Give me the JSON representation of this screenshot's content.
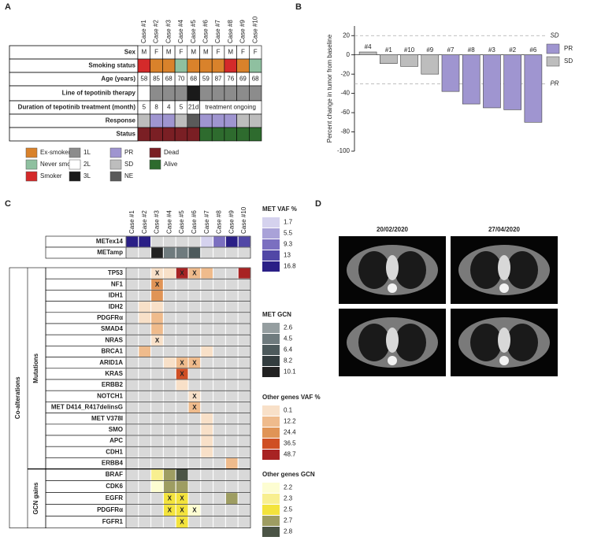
{
  "panel_a": {
    "label": "A",
    "cases": [
      "Case #1",
      "Case #2",
      "Case #3",
      "Case #4",
      "Case #5",
      "Case #6",
      "Case #7",
      "Case #8",
      "Case #9",
      "Case #10"
    ],
    "rows": [
      {
        "label": "Sex",
        "cells": [
          "M",
          "F",
          "M",
          "F",
          "M",
          "M",
          "F",
          "M",
          "F",
          "F"
        ]
      },
      {
        "label": "Smoking status",
        "cells": [
          "Smoker",
          "Ex-smoker",
          "Ex-smoker",
          "Never smoked",
          "Ex-smoker",
          "Ex-smoker",
          "Ex-smoker",
          "Smoker",
          "Ex-smoker",
          "Never smoked"
        ]
      },
      {
        "label": "Age (years)",
        "cells": [
          58,
          85,
          68,
          70,
          68,
          59,
          87,
          76,
          69,
          68
        ]
      },
      {
        "label": "Line of tepotinib therapy",
        "cells": [
          "2L",
          "1L",
          "1L",
          "1L",
          "3L",
          "1L",
          "1L",
          "1L",
          "1L",
          "1L"
        ]
      },
      {
        "label": "Duration of tepotinib treatment (month)",
        "cells": [
          5,
          8,
          4,
          5,
          "21d",
          "treatment ongoing",
          null,
          null,
          null,
          null
        ]
      },
      {
        "label": "Response",
        "cells": [
          "SD",
          "PR",
          "PR",
          "SD",
          "NE",
          "PR",
          "PR",
          "PR",
          "SD",
          "SD"
        ]
      },
      {
        "label": "Status",
        "cells": [
          "Dead",
          "Dead",
          "Dead",
          "Dead",
          "Dead",
          "Alive",
          "Alive",
          "Alive",
          "Alive",
          "Alive"
        ]
      }
    ],
    "legend": [
      {
        "name": "Ex-smoker",
        "color": "#d9822b"
      },
      {
        "name": "Never smoked",
        "color": "#8fc0a0"
      },
      {
        "name": "Smoker",
        "color": "#d42a2a"
      },
      {
        "name": "1L",
        "color": "#8c8c8c"
      },
      {
        "name": "2L",
        "color": "#ffffff"
      },
      {
        "name": "3L",
        "color": "#1a1a1a"
      },
      {
        "name": "PR",
        "color": "#9f95d0"
      },
      {
        "name": "SD",
        "color": "#bdbdbd"
      },
      {
        "name": "NE",
        "color": "#5a5a5a"
      },
      {
        "name": "Dead",
        "color": "#7a1f24"
      },
      {
        "name": "Alive",
        "color": "#2e6b2e"
      }
    ]
  },
  "chart_data": {
    "type": "bar",
    "panel_label": "B",
    "ylabel": "Percent change in tumor from baseline",
    "categories": [
      "#4",
      "#1",
      "#10",
      "#9",
      "#7",
      "#8",
      "#3",
      "#2",
      "#6"
    ],
    "series": [
      {
        "name": "PR",
        "color": "#9f95d0",
        "values": [
          null,
          null,
          null,
          null,
          -38,
          -51,
          -55,
          -57,
          -70
        ]
      },
      {
        "name": "SD",
        "color": "#bdbdbd",
        "values": [
          3,
          -9,
          -12,
          -20,
          null,
          null,
          null,
          null,
          null
        ]
      }
    ],
    "ylim": [
      -100,
      30
    ],
    "yticks": [
      20,
      0,
      -20,
      -40,
      -60,
      -80,
      -100
    ],
    "reference_lines": [
      {
        "value": 20,
        "label": "SD"
      },
      {
        "value": -30,
        "label": "PR"
      }
    ],
    "legend": "right"
  },
  "panel_c": {
    "label": "C",
    "cases": [
      "Case #1",
      "Case #2",
      "Case #3",
      "Case #4",
      "Case #5",
      "Case #6",
      "Case #7",
      "Case #8",
      "Case #9",
      "Case #10"
    ],
    "group_label": "Co-alterations",
    "mutations_label": "Mutations",
    "gcn_label": "GCN gains",
    "scales": [
      {
        "title": "MET VAF %",
        "levels": [
          1.7,
          5.5,
          9.3,
          13,
          16.8
        ],
        "colors": [
          "#d5d2ee",
          "#a9a2d8",
          "#7b6fc0",
          "#5147a6",
          "#2a1f86"
        ]
      },
      {
        "title": "MET GCN",
        "levels": [
          2.6,
          4.5,
          6.4,
          8.2,
          10.1
        ],
        "colors": [
          "#959ea0",
          "#6f7b7e",
          "#4d5a5c",
          "#333d3f",
          "#222222"
        ]
      },
      {
        "title": "Other genes VAF %",
        "levels": [
          0.1,
          12.2,
          24.4,
          36.5,
          48.7
        ],
        "colors": [
          "#f8e0c8",
          "#efbb8c",
          "#e09456",
          "#cf4f24",
          "#a82323"
        ]
      },
      {
        "title": "Other genes GCN",
        "levels": [
          2.2,
          2.3,
          2.5,
          2.7,
          2.8
        ],
        "colors": [
          "#fdfdd2",
          "#f8ef90",
          "#f3e33c",
          "#9e9d62",
          "#4b5445"
        ]
      }
    ],
    "met_vaf_rows": [
      {
        "label": "METex14",
        "values": [
          16.8,
          16.8,
          null,
          null,
          null,
          null,
          1.7,
          9.3,
          16.8,
          13
        ]
      }
    ],
    "met_gcn_rows": [
      {
        "label": "METamp",
        "values": [
          null,
          null,
          10.1,
          4.5,
          4.5,
          6.4,
          null,
          null,
          null,
          null
        ]
      }
    ],
    "mutation_rows": [
      {
        "label": "TP53",
        "values": [
          null,
          null,
          0.1,
          0.1,
          48.7,
          12.2,
          12.2,
          null,
          null,
          48.7
        ],
        "marks": [
          null,
          null,
          "X",
          null,
          "X",
          "X",
          null,
          null,
          null,
          null
        ]
      },
      {
        "label": "NF1",
        "values": [
          null,
          null,
          24.4,
          null,
          null,
          null,
          null,
          null,
          null,
          null
        ],
        "marks": [
          null,
          null,
          "X",
          null,
          null,
          null,
          null,
          null,
          null,
          null
        ]
      },
      {
        "label": "IDH1",
        "values": [
          null,
          null,
          24.4,
          null,
          null,
          null,
          null,
          null,
          null,
          null
        ]
      },
      {
        "label": "IDH2",
        "values": [
          null,
          0.1,
          0.1,
          null,
          null,
          null,
          null,
          null,
          null,
          null
        ]
      },
      {
        "label": "PDGFRα",
        "values": [
          null,
          0.1,
          12.2,
          null,
          null,
          null,
          null,
          null,
          null,
          null
        ]
      },
      {
        "label": "SMAD4",
        "values": [
          null,
          null,
          12.2,
          null,
          null,
          null,
          null,
          null,
          null,
          null
        ]
      },
      {
        "label": "NRAS",
        "values": [
          null,
          null,
          0.1,
          null,
          null,
          null,
          null,
          null,
          null,
          null
        ],
        "marks": [
          null,
          null,
          "X",
          null,
          null,
          null,
          null,
          null,
          null,
          null
        ]
      },
      {
        "label": "BRCA1",
        "values": [
          null,
          12.2,
          null,
          null,
          null,
          null,
          0.1,
          null,
          null,
          null
        ]
      },
      {
        "label": "ARID1A",
        "values": [
          null,
          null,
          null,
          0.1,
          12.2,
          12.2,
          null,
          null,
          null,
          null
        ],
        "marks": [
          null,
          null,
          null,
          null,
          "X",
          "X",
          null,
          null,
          null,
          null
        ]
      },
      {
        "label": "KRAS",
        "values": [
          null,
          null,
          null,
          null,
          36.5,
          null,
          null,
          null,
          null,
          null
        ],
        "marks": [
          null,
          null,
          null,
          null,
          "X",
          null,
          null,
          null,
          null,
          null
        ]
      },
      {
        "label": "ERBB2",
        "values": [
          null,
          null,
          null,
          null,
          0.1,
          null,
          null,
          null,
          null,
          null
        ]
      },
      {
        "label": "NOTCH1",
        "values": [
          null,
          null,
          null,
          null,
          null,
          0.1,
          null,
          null,
          null,
          null
        ],
        "marks": [
          null,
          null,
          null,
          null,
          null,
          "X",
          null,
          null,
          null,
          null
        ]
      },
      {
        "label": "MET D414_R417delinsG",
        "values": [
          null,
          null,
          null,
          null,
          null,
          12.2,
          null,
          null,
          null,
          null
        ],
        "marks": [
          null,
          null,
          null,
          null,
          null,
          "X",
          null,
          null,
          null,
          null
        ]
      },
      {
        "label": "MET V378I",
        "values": [
          null,
          null,
          null,
          null,
          null,
          null,
          0.1,
          null,
          null,
          null
        ]
      },
      {
        "label": "SMO",
        "values": [
          null,
          null,
          null,
          null,
          null,
          null,
          0.1,
          null,
          null,
          null
        ]
      },
      {
        "label": "APC",
        "values": [
          null,
          null,
          null,
          null,
          null,
          null,
          0.1,
          null,
          null,
          null
        ]
      },
      {
        "label": "CDH1",
        "values": [
          null,
          null,
          null,
          null,
          null,
          null,
          0.1,
          null,
          null,
          null
        ]
      },
      {
        "label": "ERBB4",
        "values": [
          null,
          null,
          null,
          null,
          null,
          null,
          null,
          null,
          12.2,
          null
        ]
      }
    ],
    "gcn_rows": [
      {
        "label": "BRAF",
        "values": [
          null,
          null,
          2.3,
          2.7,
          2.8,
          null,
          null,
          null,
          null,
          null
        ]
      },
      {
        "label": "CDK6",
        "values": [
          null,
          null,
          2.2,
          2.7,
          2.7,
          null,
          null,
          null,
          null,
          null
        ]
      },
      {
        "label": "EGFR",
        "values": [
          null,
          null,
          null,
          2.5,
          2.5,
          null,
          null,
          null,
          2.7,
          null
        ],
        "marks": [
          null,
          null,
          null,
          "X",
          "X",
          null,
          null,
          null,
          null,
          null
        ]
      },
      {
        "label": "PDGFRα",
        "values": [
          null,
          null,
          null,
          2.5,
          2.5,
          2.2,
          null,
          null,
          null,
          null
        ],
        "marks": [
          null,
          null,
          null,
          "X",
          "X",
          "X",
          null,
          null,
          null,
          null
        ]
      },
      {
        "label": "FGFR1",
        "values": [
          null,
          null,
          null,
          null,
          2.5,
          null,
          null,
          null,
          null,
          null
        ],
        "marks": [
          null,
          null,
          null,
          null,
          "X",
          null,
          null,
          null,
          null,
          null
        ]
      }
    ]
  },
  "panel_d": {
    "label": "D",
    "dates": [
      "20/02/2020",
      "27/04/2020"
    ]
  }
}
